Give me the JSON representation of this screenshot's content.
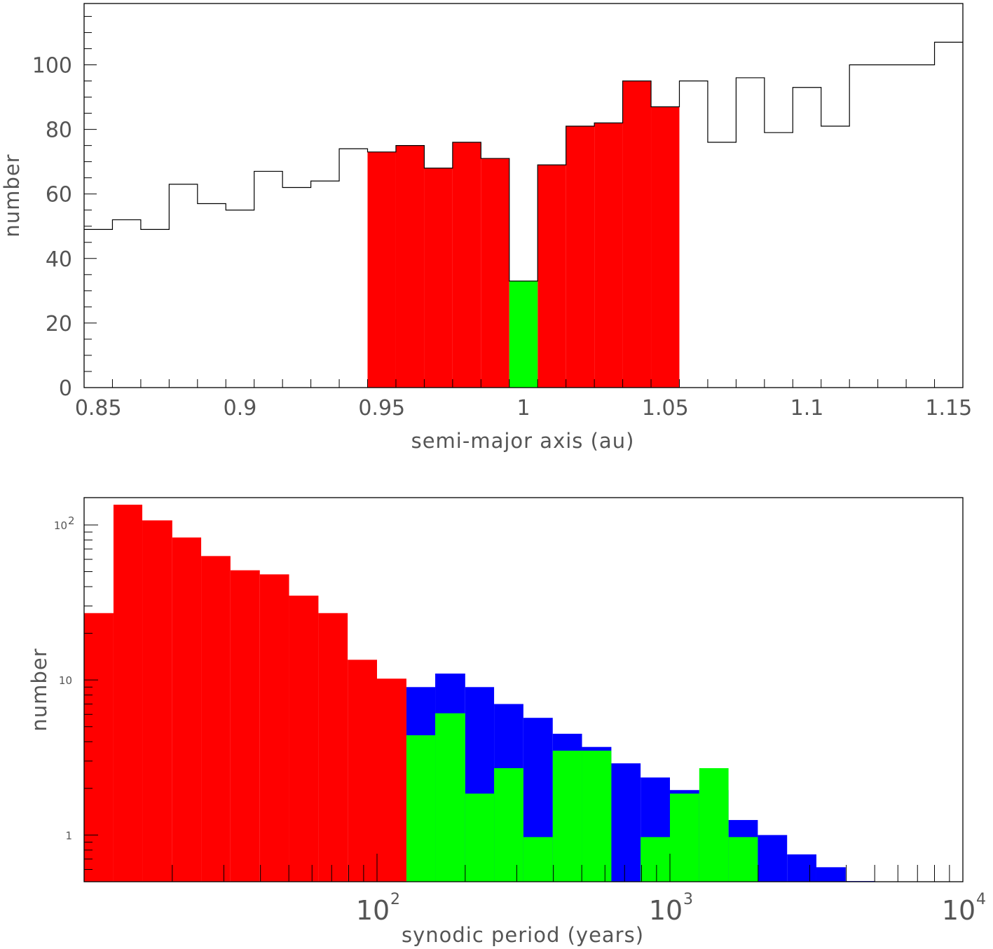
{
  "colors": {
    "red": "#ff0000",
    "green": "#00ff00",
    "blue": "#0000ff",
    "outline": "#000000"
  },
  "chart_data": [
    {
      "type": "histogram",
      "xlabel": "semi-major axis (au)",
      "ylabel": "number",
      "xlim": [
        0.845,
        1.155
      ],
      "ylim": [
        0,
        119
      ],
      "x_tick_labels": [
        "0.85",
        "0.9",
        "0.95",
        "1",
        "1.05",
        "1.1",
        "1.15"
      ],
      "y_tick_labels": [
        "0",
        "20",
        "40",
        "60",
        "80",
        "100"
      ],
      "bin_width": 0.01,
      "bin_edges": [
        0.845,
        0.855,
        0.865,
        0.875,
        0.885,
        0.895,
        0.905,
        0.915,
        0.925,
        0.935,
        0.945,
        0.955,
        0.965,
        0.975,
        0.985,
        0.995,
        1.005,
        1.015,
        1.025,
        1.035,
        1.045,
        1.055,
        1.065,
        1.075,
        1.085,
        1.095,
        1.105,
        1.115,
        1.125,
        1.135,
        1.145,
        1.155
      ],
      "series": [
        {
          "color": "outline",
          "style": "step",
          "values": [
            49,
            52,
            49,
            63,
            57,
            55,
            67,
            62,
            64,
            74,
            73,
            75,
            68,
            76,
            71,
            33,
            69,
            81,
            82,
            95,
            87,
            95,
            76,
            96,
            79,
            93,
            81,
            100,
            100,
            100,
            107
          ]
        },
        {
          "color": "red",
          "style": "filled",
          "bin_range": [
            0.945,
            1.055
          ],
          "values": [
            73,
            75,
            68,
            76,
            71,
            0,
            69,
            81,
            82,
            95,
            87
          ]
        },
        {
          "color": "green",
          "style": "filled",
          "bin_range": [
            0.995,
            1.005
          ],
          "values": [
            33
          ]
        }
      ]
    },
    {
      "type": "histogram",
      "xlabel": "synodic period (years)",
      "ylabel": "number",
      "xscale": "log",
      "yscale": "log",
      "xlim": [
        10,
        10000
      ],
      "ylim": [
        0.5,
        150
      ],
      "x_tick_labels": [
        {
          "base": "10",
          "exp": "2"
        },
        {
          "base": "10",
          "exp": "3"
        },
        {
          "base": "10",
          "exp": "4"
        }
      ],
      "y_tick_labels": [
        {
          "value": 1,
          "label": "1"
        },
        {
          "value": 10,
          "label": "10"
        },
        {
          "value": 100,
          "label": "10",
          "exp": "2"
        }
      ],
      "log_bin_width": 0.1,
      "bin_edges": [
        10,
        12.6,
        15.8,
        20,
        25.1,
        31.6,
        39.8,
        50.1,
        63.1,
        79.4,
        100,
        126,
        158,
        200,
        251,
        316,
        398,
        501,
        631,
        794,
        1000,
        1259,
        1585,
        1995,
        2512,
        3162,
        3981,
        5012
      ],
      "series": [
        {
          "color": "red",
          "style": "filled",
          "values": [
            27,
            135,
            107,
            83,
            63,
            51,
            48,
            35,
            27,
            13.5,
            10.2
          ]
        },
        {
          "color": "blue",
          "style": "filled",
          "values": [
            0,
            0,
            0,
            0,
            0,
            0,
            0,
            0,
            0,
            0,
            0,
            9,
            11,
            9,
            7,
            5.7,
            4.5,
            3.7,
            2.9,
            2.35,
            1.95,
            1.95,
            1.25,
            1,
            0.75,
            0.62,
            0.505
          ]
        },
        {
          "color": "green",
          "style": "filled",
          "values": [
            0,
            0,
            0,
            0,
            0,
            0,
            0,
            0,
            0,
            0,
            0,
            4.4,
            6.1,
            1.85,
            2.7,
            0.97,
            3.5,
            3.5,
            0,
            0.97,
            1.85,
            2.7,
            0.97
          ]
        }
      ]
    }
  ]
}
